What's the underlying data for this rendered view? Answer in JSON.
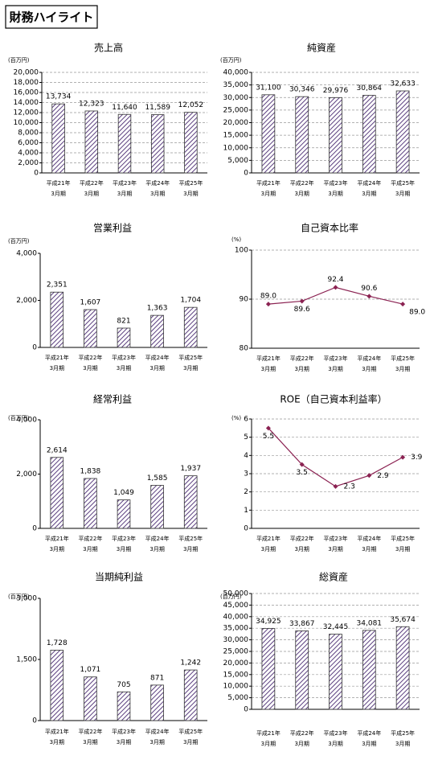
{
  "page_title": "財務ハイライト",
  "chart_data": [
    {
      "type": "bar",
      "title": "売上高",
      "unit": "(百万円)",
      "color": "#5b3f7f",
      "grid": true,
      "categories": [
        [
          "平成21年",
          "3月期"
        ],
        [
          "平成22年",
          "3月期"
        ],
        [
          "平成23年",
          "3月期"
        ],
        [
          "平成24年",
          "3月期"
        ],
        [
          "平成25年",
          "3月期"
        ]
      ],
      "values": [
        13734,
        12323,
        11640,
        11589,
        12052
      ],
      "value_labels": [
        "13,734",
        "12,323",
        "11,640",
        "11,589",
        "12,052"
      ],
      "ylim": [
        0,
        20000
      ],
      "yticks": [
        0,
        {
          "value": 2000,
          "label": "2,000"
        },
        {
          "value": 4000,
          "label": "4,000"
        },
        {
          "value": 6000,
          "label": "6,000"
        },
        {
          "value": 8000,
          "label": "8,000"
        },
        {
          "value": 10000,
          "label": "10,000"
        },
        {
          "value": 12000,
          "label": "12,000"
        },
        {
          "value": 14000,
          "label": "14,000"
        },
        {
          "value": 16000,
          "label": "16,000"
        },
        {
          "value": 18000,
          "label": "18,000"
        },
        {
          "value": 20000,
          "label": "20,000"
        }
      ]
    },
    {
      "type": "bar",
      "title": "純資産",
      "unit": "(百万円)",
      "color": "#5b3f7f",
      "grid": true,
      "categories": [
        [
          "平成21年",
          "3月期"
        ],
        [
          "平成22年",
          "3月期"
        ],
        [
          "平成23年",
          "3月期"
        ],
        [
          "平成24年",
          "3月期"
        ],
        [
          "平成25年",
          "3月期"
        ]
      ],
      "values": [
        31100,
        30346,
        29976,
        30864,
        32633
      ],
      "value_labels": [
        "31,100",
        "30,346",
        "29,976",
        "30,864",
        "32,633"
      ],
      "ylim": [
        0,
        40000
      ],
      "yticks": [
        0,
        {
          "value": 5000,
          "label": "5,000"
        },
        {
          "value": 10000,
          "label": "10,000"
        },
        {
          "value": 15000,
          "label": "15,000"
        },
        {
          "value": 20000,
          "label": "20,000"
        },
        {
          "value": 25000,
          "label": "25,000"
        },
        {
          "value": 30000,
          "label": "30,000"
        },
        {
          "value": 35000,
          "label": "35,000"
        },
        {
          "value": 40000,
          "label": "40,000"
        }
      ]
    },
    {
      "type": "bar",
      "title": "営業利益",
      "unit": "(百万円)",
      "color": "#5b3f7f",
      "grid": false,
      "categories": [
        [
          "平成21年",
          "3月期"
        ],
        [
          "平成22年",
          "3月期"
        ],
        [
          "平成23年",
          "3月期"
        ],
        [
          "平成24年",
          "3月期"
        ],
        [
          "平成25年",
          "3月期"
        ]
      ],
      "values": [
        2351,
        1607,
        821,
        1363,
        1704
      ],
      "value_labels": [
        "2,351",
        "1,607",
        "821",
        "1,363",
        "1,704"
      ],
      "ylim": [
        0,
        4000
      ],
      "yticks": [
        0,
        {
          "value": 2000,
          "label": "2,000"
        },
        {
          "value": 4000,
          "label": "4,000"
        }
      ]
    },
    {
      "type": "line",
      "title": "自己資本比率",
      "unit": "(%)",
      "color": "#8b2252",
      "grid": true,
      "categories": [
        [
          "平成21年",
          "3月期"
        ],
        [
          "平成22年",
          "3月期"
        ],
        [
          "平成23年",
          "3月期"
        ],
        [
          "平成24年",
          "3月期"
        ],
        [
          "平成25年",
          "3月期"
        ]
      ],
      "values": [
        89.0,
        89.6,
        92.4,
        90.6,
        89.0
      ],
      "value_labels": [
        "89.0",
        "89.6",
        "92.4",
        "90.6",
        "89.0"
      ],
      "ylim": [
        80,
        100
      ],
      "yticks": [
        80,
        90,
        100
      ]
    },
    {
      "type": "bar",
      "title": "経常利益",
      "unit": "(百万円)",
      "color": "#5b3f7f",
      "grid": false,
      "categories": [
        [
          "平成21年",
          "3月期"
        ],
        [
          "平成22年",
          "3月期"
        ],
        [
          "平成23年",
          "3月期"
        ],
        [
          "平成24年",
          "3月期"
        ],
        [
          "平成25年",
          "3月期"
        ]
      ],
      "values": [
        2614,
        1838,
        1049,
        1585,
        1937
      ],
      "value_labels": [
        "2,614",
        "1,838",
        "1,049",
        "1,585",
        "1,937"
      ],
      "ylim": [
        0,
        4000
      ],
      "yticks": [
        0,
        {
          "value": 2000,
          "label": "2,000"
        },
        {
          "value": 4000,
          "label": "4,000"
        }
      ]
    },
    {
      "type": "line",
      "title": "ROE（自己資本利益率）",
      "unit": "(%)",
      "color": "#8b2252",
      "grid": true,
      "categories": [
        [
          "平成21年",
          "3月期"
        ],
        [
          "平成22年",
          "3月期"
        ],
        [
          "平成23年",
          "3月期"
        ],
        [
          "平成24年",
          "3月期"
        ],
        [
          "平成25年",
          "3月期"
        ]
      ],
      "values": [
        5.5,
        3.5,
        2.3,
        2.9,
        3.9
      ],
      "ylim": [
        0,
        6
      ],
      "yticks": [
        0,
        1,
        2,
        3,
        4,
        5,
        6
      ]
    },
    {
      "type": "bar",
      "title": "当期純利益",
      "unit": "(百万円)",
      "color": "#5b3f7f",
      "grid": false,
      "categories": [
        [
          "平成21年",
          "3月期"
        ],
        [
          "平成22年",
          "3月期"
        ],
        [
          "平成23年",
          "3月期"
        ],
        [
          "平成24年",
          "3月期"
        ],
        [
          "平成25年",
          "3月期"
        ]
      ],
      "values": [
        1728,
        1071,
        705,
        871,
        1242
      ],
      "value_labels": [
        "1,728",
        "1,071",
        "705",
        "871",
        "1,242"
      ],
      "ylim": [
        0,
        3000
      ],
      "yticks": [
        0,
        {
          "value": 1500,
          "label": "1,500"
        },
        {
          "value": 3000,
          "label": "3,000"
        }
      ]
    },
    {
      "type": "bar",
      "title": "総資産",
      "unit": "(百万円)",
      "color": "#5b3f7f",
      "grid": true,
      "categories": [
        [
          "平成21年",
          "3月期"
        ],
        [
          "平成22年",
          "3月期"
        ],
        [
          "平成23年",
          "3月期"
        ],
        [
          "平成24年",
          "3月期"
        ],
        [
          "平成25年",
          "3月期"
        ]
      ],
      "values": [
        34925,
        33867,
        32445,
        34081,
        35674
      ],
      "value_labels": [
        "34,925",
        "33,867",
        "32,445",
        "34,081",
        "35,674"
      ],
      "ylim": [
        0,
        50000
      ],
      "yticks": [
        0,
        {
          "value": 5000,
          "label": "5,000"
        },
        {
          "value": 10000,
          "label": "10,000"
        },
        {
          "value": 15000,
          "label": "15,000"
        },
        {
          "value": 20000,
          "label": "20,000"
        },
        {
          "value": 25000,
          "label": "25,000"
        },
        {
          "value": 30000,
          "label": "30,000"
        },
        {
          "value": 35000,
          "label": "35,000"
        },
        {
          "value": 40000,
          "label": "40,000"
        },
        {
          "value": 45000,
          "label": "45,000"
        },
        {
          "value": 50000,
          "label": "50,000"
        }
      ]
    }
  ]
}
